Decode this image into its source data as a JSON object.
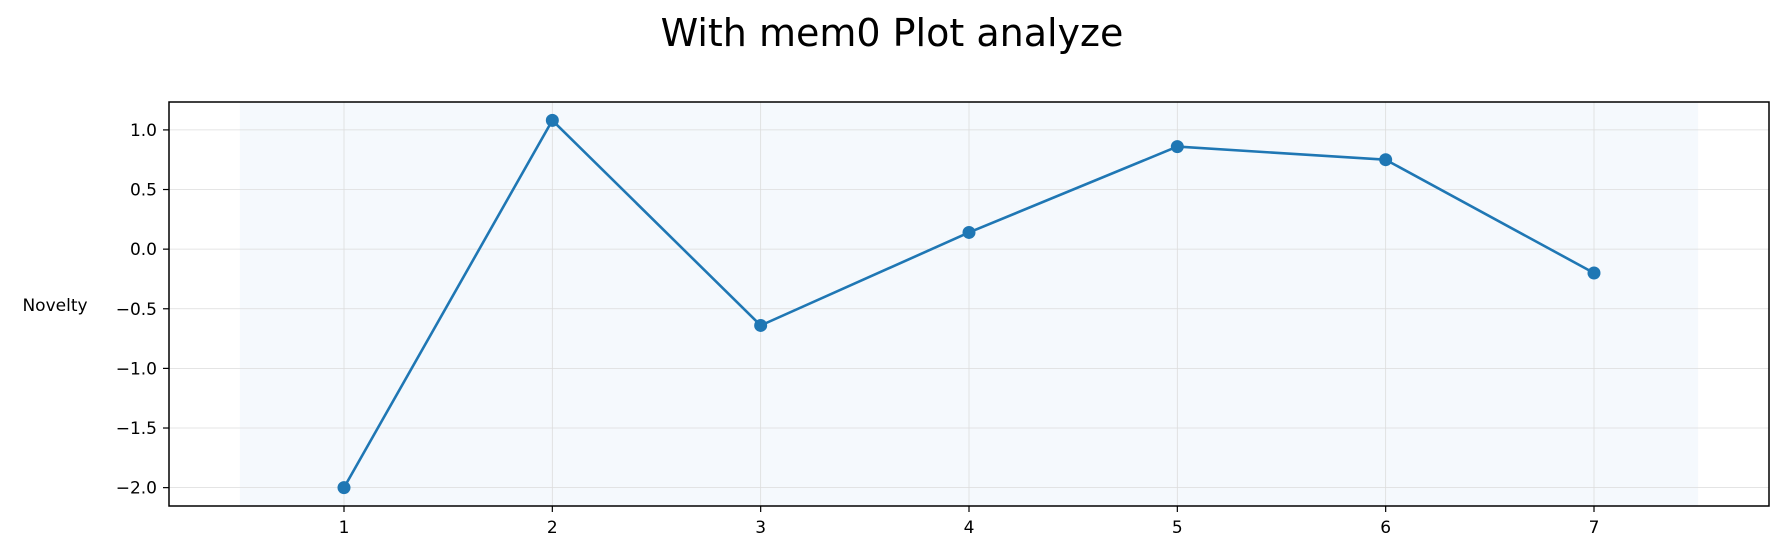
{
  "chart_data": {
    "type": "line",
    "title": "With mem0 Plot analyze",
    "xlabel": "",
    "ylabel": "Novelty",
    "x": [
      1,
      2,
      3,
      4,
      5,
      6,
      7
    ],
    "series": [
      {
        "values": [
          -2.0,
          1.08,
          -0.64,
          0.14,
          0.86,
          0.75,
          -0.2
        ]
      }
    ],
    "xticks": [
      "1",
      "2",
      "3",
      "4",
      "5",
      "6",
      "7"
    ],
    "yticks": [
      "1.0",
      "0.5",
      "0.0",
      "−0.5",
      "−1.0",
      "−1.5",
      "−2.0"
    ],
    "ytick_values": [
      1.0,
      0.5,
      0.0,
      -0.5,
      -1.0,
      -1.5,
      -2.0
    ],
    "xlim": [
      0.16,
      7.84
    ],
    "ylim": [
      -2.154,
      1.234
    ],
    "shaded_band": [
      0.5,
      7.5
    ],
    "grid": true,
    "colors": {
      "line": "#1f77b4",
      "band": "#f5f9fd",
      "grid": "#dcdcdc",
      "axis": "#000000"
    }
  }
}
